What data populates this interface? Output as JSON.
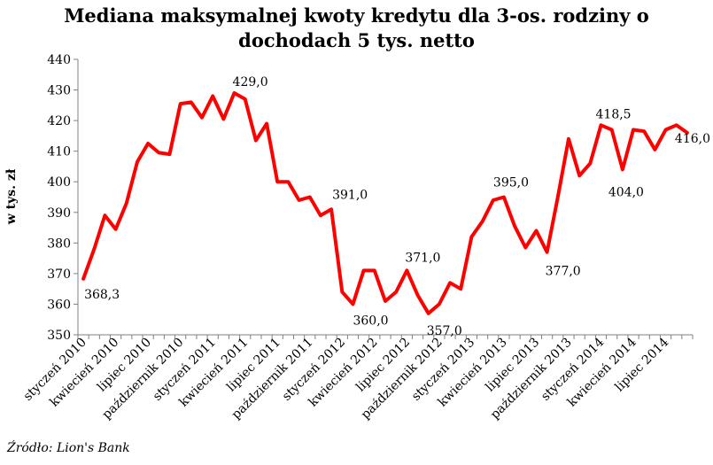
{
  "chart_data": {
    "type": "line",
    "title": "Mediana maksymalnej kwoty kredytu dla 3-os. rodziny o dochodach 5 tys. netto",
    "title_lines": [
      "Mediana maksymalnej kwoty kredytu dla 3-os. rodziny o",
      "dochodach 5 tys. netto"
    ],
    "ylabel": "w tys. zł",
    "xlabel": "",
    "ylim": [
      350,
      440
    ],
    "yticks": [
      "350",
      "360",
      "370",
      "380",
      "390",
      "400",
      "410",
      "420",
      "430",
      "440"
    ],
    "grid": false,
    "line_color": "#ff0000",
    "x_tick_labels": [
      "styczeń 2010",
      "kwiecień 2010",
      "lipiec 2010",
      "październik 2010",
      "styczeń 2011",
      "kwiecień 2011",
      "lipiec 2011",
      "październik 2011",
      "styczeń 2012",
      "kwiecień 2012",
      "lipiec 2012",
      "październik 2012",
      "styczeń 2013",
      "kwiecień 2013",
      "lipiec 2013",
      "październik 2013",
      "styczeń 2014",
      "kwiecień 2014",
      "lipiec 2014"
    ],
    "values": [
      368.3,
      378,
      389,
      384.5,
      393,
      406.5,
      412.5,
      409.5,
      409,
      425.5,
      426,
      421,
      428,
      420.5,
      429,
      427,
      413.5,
      419,
      400,
      400,
      394,
      395,
      389,
      391,
      364,
      360,
      371,
      371,
      361,
      364,
      371,
      363,
      357,
      360,
      367,
      365,
      382,
      387,
      394,
      395,
      385.5,
      378.5,
      384,
      377,
      395,
      414,
      402,
      406,
      418.5,
      417,
      404,
      417,
      416.5,
      410.5,
      417,
      418.5,
      416
    ],
    "data_labels": [
      {
        "index": 0,
        "text": "368,3"
      },
      {
        "index": 14,
        "text": "429,0"
      },
      {
        "index": 23,
        "text": "391,0"
      },
      {
        "index": 25,
        "text": "360,0"
      },
      {
        "index": 30,
        "text": "371,0"
      },
      {
        "index": 32,
        "text": "357,0"
      },
      {
        "index": 39,
        "text": "395,0"
      },
      {
        "index": 43,
        "text": "377,0"
      },
      {
        "index": 48,
        "text": "418,5"
      },
      {
        "index": 50,
        "text": "404,0"
      },
      {
        "index": 56,
        "text": "416,0"
      }
    ]
  },
  "source": "Źródło: Lion's Bank"
}
